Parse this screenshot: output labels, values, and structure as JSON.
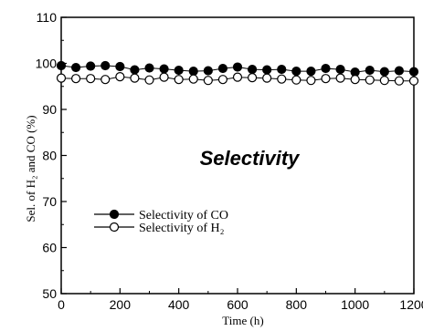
{
  "chart_data": {
    "type": "scatter",
    "xlabel": "Time (h)",
    "ylabel": "Sel. of H₂ and CO (%)",
    "xlim": [
      0,
      1200
    ],
    "ylim": [
      50,
      110
    ],
    "xticks": [
      0,
      200,
      400,
      600,
      800,
      1000,
      1200
    ],
    "yticks": [
      50,
      60,
      70,
      80,
      90,
      100,
      110
    ],
    "x_tick_labels": [
      "0",
      "200",
      "400",
      "600",
      "800",
      "1000",
      "1200"
    ],
    "y_tick_labels": [
      "50",
      "60",
      "70",
      "80",
      "90",
      "100",
      "110"
    ],
    "annotation": "Selectivity",
    "legend_position": "lower-left",
    "series": [
      {
        "name": "Selectivity of CO",
        "marker": "filled-circle",
        "color": "#000000",
        "x": [
          0,
          50,
          100,
          150,
          200,
          250,
          300,
          350,
          400,
          450,
          500,
          550,
          600,
          650,
          700,
          750,
          800,
          850,
          900,
          950,
          1000,
          1050,
          1100,
          1150,
          1200
        ],
        "y": [
          99.5,
          99.1,
          99.4,
          99.5,
          99.3,
          98.6,
          99.0,
          98.8,
          98.5,
          98.3,
          98.4,
          98.9,
          99.2,
          98.7,
          98.6,
          98.7,
          98.3,
          98.3,
          98.9,
          98.7,
          98.1,
          98.5,
          98.2,
          98.4,
          98.2
        ]
      },
      {
        "name": "Selectivity of H₂",
        "marker": "open-circle",
        "color": "#000000",
        "x": [
          0,
          50,
          100,
          150,
          200,
          250,
          300,
          350,
          400,
          450,
          500,
          550,
          600,
          650,
          700,
          750,
          800,
          850,
          900,
          950,
          1000,
          1050,
          1100,
          1150,
          1200
        ],
        "y": [
          96.8,
          96.7,
          96.7,
          96.5,
          97.1,
          96.8,
          96.4,
          97.0,
          96.5,
          96.6,
          96.3,
          96.5,
          97.0,
          96.9,
          96.8,
          96.6,
          96.4,
          96.3,
          96.7,
          96.8,
          96.5,
          96.4,
          96.3,
          96.2,
          96.2
        ]
      }
    ]
  }
}
